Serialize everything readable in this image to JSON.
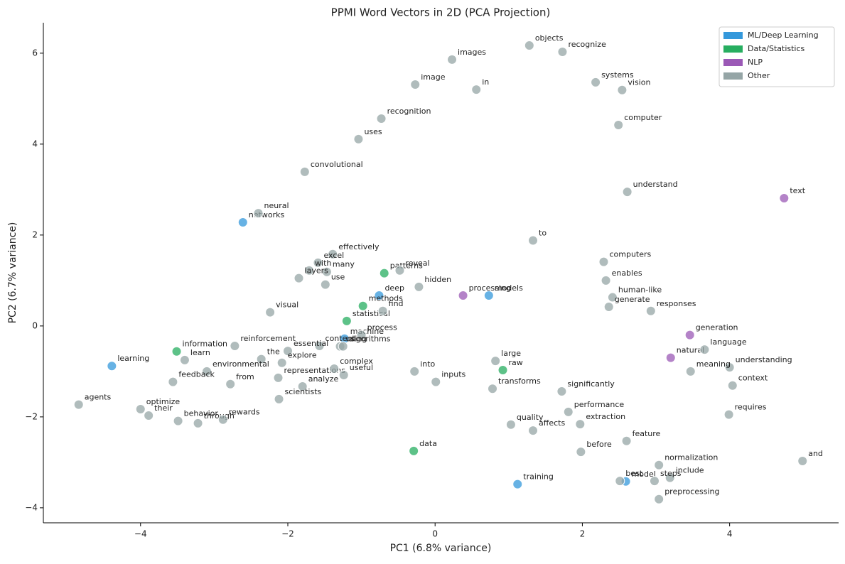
{
  "chart_data": {
    "type": "scatter",
    "title": "PPMI Word Vectors in 2D (PCA Projection)",
    "x_label": "PC1 (6.8% variance)",
    "y_label": "PC2 (6.7% variance)",
    "xlim": [
      -5.32,
      5.48
    ],
    "ylim": [
      -4.33,
      6.67
    ],
    "xticks": [
      {
        "value": -4,
        "label": "−4"
      },
      {
        "value": -2,
        "label": "−2"
      },
      0,
      2,
      4
    ],
    "yticks": [
      {
        "value": -4,
        "label": "−4"
      },
      {
        "value": -2,
        "label": "−2"
      },
      0,
      2,
      4,
      6
    ],
    "legend_position": "upper right",
    "series": [
      {
        "name": "ML/Deep Learning",
        "color": "#3498db",
        "labels": [
          "learning",
          "networks",
          "deep",
          "models",
          "machine",
          "model",
          "training"
        ],
        "x": [
          -4.39,
          -2.61,
          -0.76,
          0.73,
          -1.23,
          2.59,
          1.12
        ],
        "values": [
          -0.88,
          2.28,
          0.67,
          0.67,
          -0.28,
          -3.42,
          -3.48
        ]
      },
      {
        "name": "Data/Statistics",
        "color": "#27ae60",
        "labels": [
          "information",
          "patterns",
          "methods",
          "statistical",
          "raw",
          "data"
        ],
        "x": [
          -3.51,
          -0.69,
          -0.98,
          -1.2,
          0.92,
          -0.29
        ],
        "values": [
          -0.56,
          1.16,
          0.44,
          0.11,
          -0.97,
          -2.75
        ]
      },
      {
        "name": "NLP",
        "color": "#9b59b6",
        "labels": [
          "processing",
          "generation",
          "natural",
          "text"
        ],
        "x": [
          0.38,
          3.46,
          3.2,
          4.74
        ],
        "values": [
          0.67,
          -0.2,
          -0.7,
          2.81
        ]
      },
      {
        "name": "Other",
        "color": "#95a5a6",
        "labels": [
          "objects",
          "recognize",
          "images",
          "image",
          "in",
          "systems",
          "vision",
          "recognition",
          "computer",
          "uses",
          "convolutional",
          "understand",
          "neural",
          "to",
          "computers",
          "enables",
          "effectively",
          "excel",
          "with",
          "many",
          "layers",
          "use",
          "reveal",
          "hidden",
          "find",
          "human-like",
          "generate",
          "responses",
          "visual",
          "process",
          "content",
          "using",
          "algorithms",
          "reinforcement",
          "learn",
          "the",
          "essential",
          "explore",
          "environmental",
          "feedback",
          "from",
          "representations",
          "complex",
          "useful",
          "analyze",
          "scientists",
          "into",
          "inputs",
          "large",
          "transforms",
          "significantly",
          "agents",
          "optimize",
          "their",
          "behavior",
          "through",
          "rewards",
          "performance",
          "extraction",
          "quality",
          "affects",
          "feature",
          "before",
          "normalization",
          "include",
          "steps",
          "best",
          "preprocessing",
          "and",
          "requires",
          "context",
          "understanding",
          "meaning",
          "language"
        ],
        "x": [
          1.28,
          1.73,
          0.23,
          -0.27,
          0.56,
          2.18,
          2.54,
          -0.73,
          2.49,
          -1.04,
          -1.77,
          2.61,
          -2.4,
          1.33,
          2.29,
          2.32,
          -1.39,
          -1.59,
          -1.71,
          -1.47,
          -1.85,
          -1.49,
          -0.48,
          -0.22,
          -0.71,
          2.41,
          2.36,
          2.93,
          -2.24,
          -1.0,
          -1.57,
          -1.29,
          -1.25,
          -2.72,
          -3.4,
          -2.36,
          -2.0,
          -2.08,
          -3.1,
          -3.56,
          -2.78,
          -2.13,
          -1.37,
          -1.24,
          -1.8,
          -2.12,
          -0.28,
          0.01,
          0.82,
          0.78,
          1.72,
          -4.84,
          -4.0,
          -3.89,
          -3.49,
          -3.22,
          -2.88,
          1.81,
          1.97,
          1.03,
          1.33,
          2.6,
          1.98,
          3.04,
          3.19,
          2.98,
          2.51,
          3.04,
          4.99,
          3.99,
          4.04,
          4.0,
          3.47,
          3.66
        ],
        "values": [
          6.17,
          6.03,
          5.86,
          5.31,
          5.2,
          5.36,
          5.19,
          4.56,
          4.42,
          4.11,
          3.39,
          2.95,
          2.48,
          1.88,
          1.41,
          1.0,
          1.58,
          1.39,
          1.22,
          1.19,
          1.05,
          0.91,
          1.22,
          0.86,
          0.33,
          0.63,
          0.42,
          0.33,
          0.3,
          -0.2,
          -0.44,
          -0.45,
          -0.45,
          -0.44,
          -0.75,
          -0.73,
          -0.55,
          -0.81,
          -1.0,
          -1.23,
          -1.28,
          -1.14,
          -0.94,
          -1.08,
          -1.33,
          -1.61,
          -1.0,
          -1.23,
          -0.77,
          -1.38,
          -1.44,
          -1.73,
          -1.83,
          -1.97,
          -2.09,
          -2.14,
          -2.06,
          -1.89,
          -2.16,
          -2.17,
          -2.3,
          -2.53,
          -2.77,
          -3.06,
          -3.34,
          -3.41,
          -3.41,
          -3.81,
          -2.97,
          -1.95,
          -1.31,
          -0.91,
          -1.0,
          -0.52
        ]
      }
    ]
  }
}
